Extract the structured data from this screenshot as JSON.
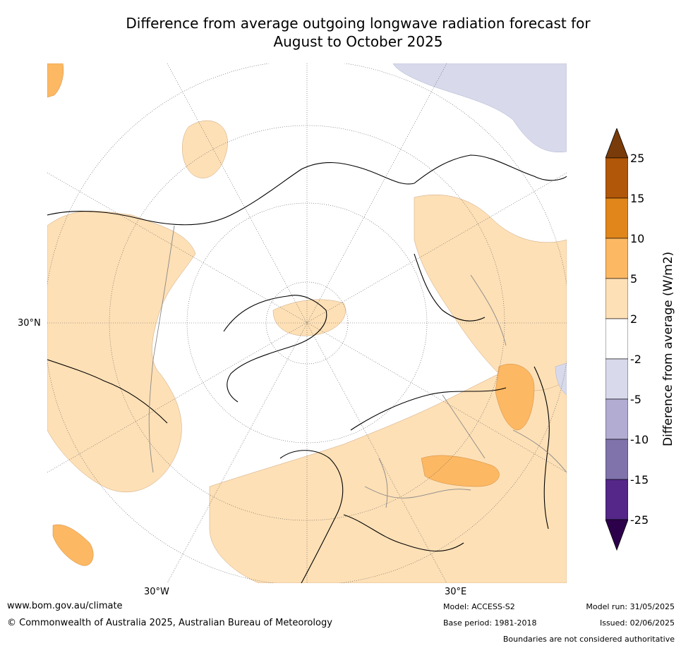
{
  "title_line1": "Difference from average outgoing longwave radiation forecast for",
  "title_line2": "August to October 2025",
  "map": {
    "lat_label": "30°N",
    "lon_labels": [
      "30°W",
      "30°E"
    ]
  },
  "legend": {
    "label": "Difference from average (W/m2)",
    "ticks": [
      "25",
      "15",
      "10",
      "5",
      "2",
      "-2",
      "-5",
      "-10",
      "-15",
      "-25"
    ],
    "colors": [
      "#7a3b0a",
      "#b15709",
      "#e0861a",
      "#fdb863",
      "#fee0b6",
      "#ffffff",
      "#d8daeb",
      "#b2abd2",
      "#8073ac",
      "#542788",
      "#2d004b"
    ]
  },
  "footer": {
    "url": "www.bom.gov.au/climate",
    "copyright": "© Commonwealth of Australia 2025, Australian Bureau of Meteorology",
    "model": "Model: ACCESS-S2",
    "base_period": "Base period: 1981-2018",
    "model_run": "Model run: 31/05/2025",
    "issued": "Issued: 02/06/2025",
    "disclaimer": "Boundaries are not considered authoritative"
  }
}
